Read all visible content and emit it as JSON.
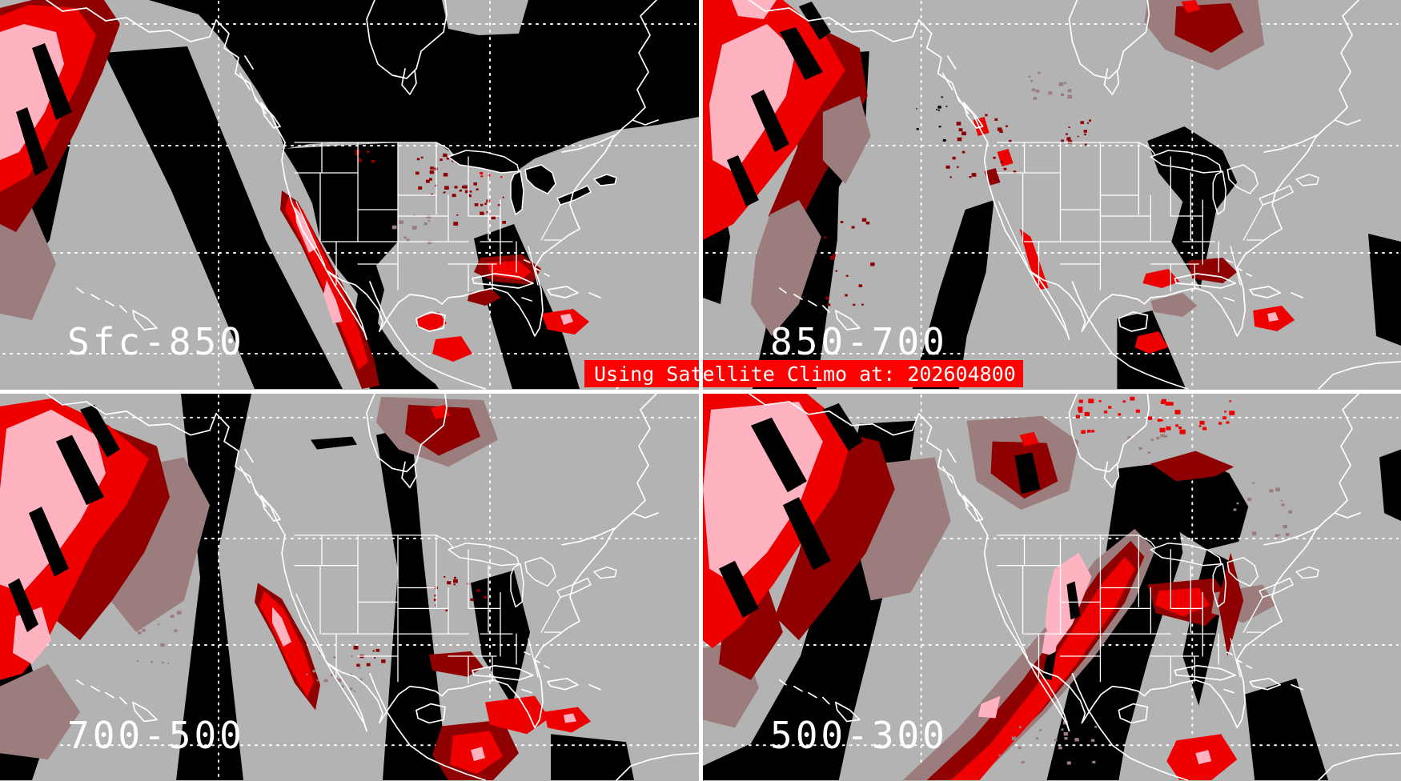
{
  "banner": {
    "text": "Using Satellite Climo at: 202604800"
  },
  "panels": [
    {
      "id": "sfc-850",
      "label": "Sfc-850"
    },
    {
      "id": "850-700",
      "label": "850-700"
    },
    {
      "id": "700-500",
      "label": "700-500"
    },
    {
      "id": "500-300",
      "label": "500-300"
    }
  ],
  "palette": {
    "background_gray": "#b3b3b3",
    "data_void_black": "#000000",
    "moisture_low_brown": "#9b7d7d",
    "moisture_mid_darkred": "#8f0000",
    "moisture_high_red": "#ee0000",
    "moisture_veryhigh_pink": "#ffb3c0",
    "linework_white": "#ffffff",
    "banner_bg": "#ff0000",
    "banner_fg": "#ffffff"
  }
}
